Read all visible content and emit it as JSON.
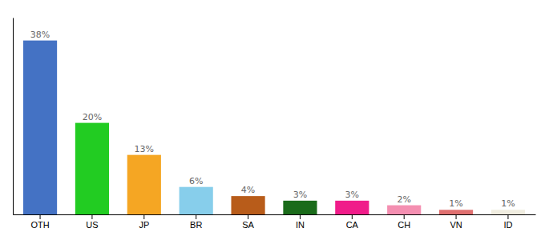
{
  "chart_data": {
    "type": "bar",
    "categories": [
      "OTH",
      "US",
      "JP",
      "BR",
      "SA",
      "IN",
      "CA",
      "CH",
      "VN",
      "ID"
    ],
    "values": [
      38,
      20,
      13,
      6,
      4,
      3,
      3,
      2,
      1,
      1
    ],
    "value_labels": [
      "38%",
      "20%",
      "13%",
      "6%",
      "4%",
      "3%",
      "3%",
      "2%",
      "1%",
      "1%"
    ],
    "colors": [
      "#4472c4",
      "#22cc22",
      "#f5a623",
      "#87ceeb",
      "#b85c1a",
      "#1a6b1a",
      "#f01c8a",
      "#f48fb1",
      "#e07070",
      "#f0ede0"
    ],
    "ylim": [
      0,
      43
    ],
    "data_labels": true,
    "tick_labels": "x"
  }
}
